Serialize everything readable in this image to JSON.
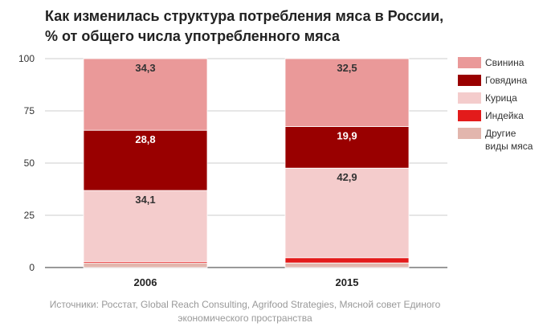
{
  "title_line1": "Как изменилась структура потребления мяса в России,",
  "title_line2": "% от общего числа употребленного мяса",
  "source": "Источники: Росстат, Global Reach Consulting, Agrifood Strategies, Мясной совет Единого экономического пространства",
  "chart_data": {
    "type": "bar",
    "stacked": true,
    "categories": [
      "2006",
      "2015"
    ],
    "ylim": [
      0,
      100
    ],
    "yticks": [
      0,
      25,
      50,
      75,
      100
    ],
    "grid": true,
    "legend_position": "right",
    "series": [
      {
        "name": "Другие\nвиды мяса",
        "color": "#e2b6ad",
        "values": [
          2.1,
          2.2
        ],
        "labels": [
          "",
          ""
        ]
      },
      {
        "name": "Индейка",
        "color": "#e31b1b",
        "values": [
          0.7,
          2.5
        ],
        "labels": [
          "",
          ""
        ]
      },
      {
        "name": "Курица",
        "color": "#f4cccc",
        "values": [
          34.1,
          42.9
        ],
        "labels": [
          "34,1",
          "42,9"
        ]
      },
      {
        "name": "Говядина",
        "color": "#990000",
        "values": [
          28.8,
          19.9
        ],
        "labels": [
          "28,8",
          "19,9"
        ]
      },
      {
        "name": "Свинина",
        "color": "#ea9999",
        "values": [
          34.3,
          32.5
        ],
        "labels": [
          "34,3",
          "32,5"
        ]
      }
    ]
  }
}
